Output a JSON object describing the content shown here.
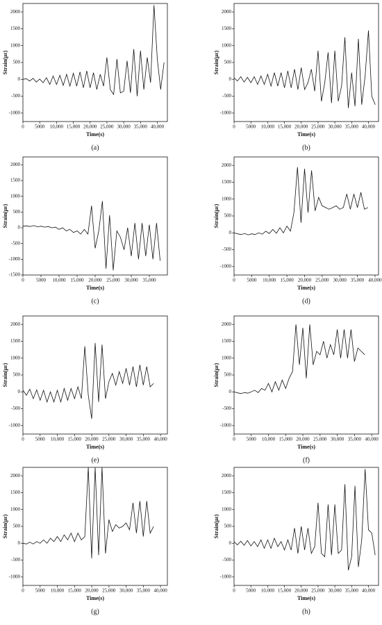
{
  "chart_data": [
    {
      "type": "line",
      "label": "(a)",
      "xlabel": "Time(s)",
      "ylabel": "Strain(με)",
      "color": "#111111",
      "x": [
        0,
        1000,
        2000,
        3000,
        4000,
        5000,
        6000,
        7000,
        8000,
        9000,
        10000,
        11000,
        12000,
        13000,
        14000,
        15000,
        16000,
        17000,
        18000,
        19000,
        20000,
        21000,
        22000,
        23000,
        24000,
        25000,
        26000,
        27000,
        28000,
        29000,
        30000,
        31000,
        32000,
        33000,
        34000,
        35000,
        36000,
        37000,
        38000,
        39000,
        40000,
        41000,
        42000
      ],
      "values": [
        0,
        20,
        -50,
        30,
        -80,
        10,
        -100,
        50,
        -150,
        100,
        -150,
        120,
        -180,
        150,
        -200,
        180,
        -200,
        220,
        -250,
        250,
        -250,
        200,
        -300,
        150,
        -200,
        650,
        -300,
        -450,
        600,
        -400,
        -350,
        550,
        -400,
        900,
        -500,
        850,
        -300,
        650,
        -100,
        2200,
        600,
        -300,
        500
      ],
      "xlim": [
        0,
        43000
      ],
      "ylim": [
        -1250,
        2250
      ],
      "xticks": [
        0,
        5000,
        {
          "value": 10000,
          "label": "10,000"
        },
        {
          "value": 15000,
          "label": "15,000"
        },
        {
          "value": 20000,
          "label": "20,000"
        },
        {
          "value": 25000,
          "label": "25,000"
        },
        {
          "value": 30000,
          "label": "30,000"
        },
        {
          "value": 35000,
          "label": "35,000"
        },
        {
          "value": 40000,
          "label": "40,000"
        }
      ],
      "yticks": [
        -1000,
        -500,
        0,
        500,
        1000,
        1500,
        2000
      ]
    },
    {
      "type": "line",
      "label": "(b)",
      "xlabel": "Time(s)",
      "ylabel": "Strain(με)",
      "color": "#111111",
      "x": [
        0,
        1000,
        2000,
        3000,
        4000,
        5000,
        6000,
        7000,
        8000,
        9000,
        10000,
        11000,
        12000,
        13000,
        14000,
        15000,
        16000,
        17000,
        18000,
        19000,
        20000,
        21000,
        22000,
        23000,
        24000,
        25000,
        26000,
        27000,
        28000,
        29000,
        30000,
        31000,
        32000,
        33000,
        34000,
        35000,
        36000,
        37000,
        38000,
        39000,
        40000,
        41000,
        42000
      ],
      "values": [
        50,
        -50,
        80,
        -80,
        60,
        -100,
        80,
        -150,
        100,
        -150,
        150,
        -200,
        200,
        -200,
        200,
        -250,
        250,
        -250,
        300,
        -300,
        350,
        -300,
        -100,
        300,
        -350,
        850,
        -650,
        -100,
        800,
        -700,
        850,
        -650,
        -200,
        1250,
        -850,
        200,
        -800,
        1200,
        -750,
        100,
        1450,
        -500,
        -750
      ],
      "xlim": [
        0,
        43000
      ],
      "ylim": [
        -1250,
        2250
      ],
      "xticks": [
        0,
        5000,
        {
          "value": 10000,
          "label": "10,000"
        },
        {
          "value": 15000,
          "label": "15,000"
        },
        {
          "value": 20000,
          "label": "20,000"
        },
        {
          "value": 25000,
          "label": "25,000"
        },
        {
          "value": 30000,
          "label": "30,000"
        },
        {
          "value": 35000,
          "label": "35,000"
        },
        {
          "value": 40000,
          "label": "40,000"
        }
      ],
      "yticks": [
        -1000,
        -500,
        0,
        500,
        1000,
        1500,
        2000
      ]
    },
    {
      "type": "line",
      "label": "(c)",
      "xlabel": "Time(s)",
      "ylabel": "Strain(με)",
      "color": "#111111",
      "x": [
        0,
        1000,
        2000,
        3000,
        4000,
        5000,
        6000,
        7000,
        8000,
        9000,
        10000,
        11000,
        12000,
        13000,
        14000,
        15000,
        16000,
        17000,
        18000,
        19000,
        20000,
        21000,
        22000,
        23000,
        24000,
        25000,
        26000,
        27000,
        28000,
        29000,
        30000,
        31000,
        32000,
        33000,
        34000,
        35000,
        36000,
        37000,
        38000
      ],
      "values": [
        50,
        60,
        40,
        70,
        30,
        50,
        20,
        40,
        0,
        20,
        -50,
        0,
        -100,
        -50,
        -150,
        -100,
        -200,
        -50,
        -200,
        700,
        -650,
        -100,
        850,
        -1300,
        400,
        -1350,
        -100,
        -300,
        -700,
        0,
        -900,
        150,
        -1000,
        150,
        -900,
        100,
        -1000,
        150,
        -1050
      ],
      "xlim": [
        0,
        40000
      ],
      "ylim": [
        -1500,
        2250
      ],
      "xticks": [
        0,
        5000,
        {
          "value": 10000,
          "label": "10,000"
        },
        {
          "value": 15000,
          "label": "15,000"
        },
        {
          "value": 20000,
          "label": "20,000"
        },
        {
          "value": 25000,
          "label": "25,000"
        },
        {
          "value": 30000,
          "label": "30,000"
        },
        {
          "value": 35000,
          "label": "35,000"
        }
      ],
      "yticks": [
        -1500,
        -1000,
        -500,
        0,
        500,
        1000,
        1500,
        2000
      ]
    },
    {
      "type": "line",
      "label": "(d)",
      "xlabel": "Time(s)",
      "ylabel": "Strain(με)",
      "color": "#111111",
      "x": [
        0,
        1000,
        2000,
        3000,
        4000,
        5000,
        6000,
        7000,
        8000,
        9000,
        10000,
        11000,
        12000,
        13000,
        14000,
        15000,
        16000,
        17000,
        18000,
        19000,
        20000,
        21000,
        22000,
        23000,
        24000,
        25000,
        26000,
        27000,
        28000,
        29000,
        30000,
        31000,
        32000,
        33000,
        34000,
        35000,
        36000,
        37000,
        38000
      ],
      "values": [
        0,
        -30,
        -50,
        -20,
        -60,
        -30,
        -50,
        0,
        -40,
        50,
        -20,
        100,
        -10,
        150,
        0,
        200,
        50,
        600,
        1950,
        300,
        1900,
        600,
        1850,
        650,
        1050,
        800,
        750,
        700,
        750,
        800,
        700,
        750,
        1150,
        700,
        1150,
        750,
        1200,
        700,
        750
      ],
      "xlim": [
        0,
        41000
      ],
      "ylim": [
        -1250,
        2250
      ],
      "xticks": [
        0,
        5000,
        {
          "value": 10000,
          "label": "10,000"
        },
        {
          "value": 15000,
          "label": "15,000"
        },
        {
          "value": 20000,
          "label": "20,000"
        },
        {
          "value": 25000,
          "label": "25,000"
        },
        {
          "value": 30000,
          "label": "30,000"
        },
        {
          "value": 35000,
          "label": "35,000"
        },
        {
          "value": 40000,
          "label": "40,000"
        }
      ],
      "yticks": [
        -1000,
        -500,
        0,
        500,
        1000,
        1500,
        2000
      ]
    },
    {
      "type": "line",
      "label": "(e)",
      "xlabel": "Time(s)",
      "ylabel": "Strain(με)",
      "color": "#111111",
      "x": [
        0,
        1000,
        2000,
        3000,
        4000,
        5000,
        6000,
        7000,
        8000,
        9000,
        10000,
        11000,
        12000,
        13000,
        14000,
        15000,
        16000,
        17000,
        18000,
        19000,
        20000,
        21000,
        22000,
        23000,
        24000,
        25000,
        26000,
        27000,
        28000,
        29000,
        30000,
        31000,
        32000,
        33000,
        34000,
        35000,
        36000,
        37000,
        38000
      ],
      "values": [
        50,
        -100,
        80,
        -200,
        60,
        -250,
        50,
        -300,
        0,
        -300,
        50,
        -300,
        100,
        -250,
        100,
        -200,
        150,
        -200,
        1350,
        -100,
        -800,
        1450,
        -300,
        1400,
        -200,
        300,
        550,
        200,
        600,
        250,
        700,
        200,
        750,
        150,
        800,
        200,
        750,
        150,
        250
      ],
      "xlim": [
        0,
        42000
      ],
      "ylim": [
        -1250,
        2250
      ],
      "xticks": [
        0,
        5000,
        {
          "value": 10000,
          "label": "10,000"
        },
        {
          "value": 15000,
          "label": "15,000"
        },
        {
          "value": 20000,
          "label": "20,000"
        },
        {
          "value": 25000,
          "label": "25,000"
        },
        {
          "value": 30000,
          "label": "30,000"
        },
        {
          "value": 35000,
          "label": "35,000"
        },
        {
          "value": 40000,
          "label": "40,000"
        }
      ],
      "yticks": [
        -1000,
        -500,
        0,
        500,
        1000,
        1500,
        2000
      ]
    },
    {
      "type": "line",
      "label": "(f)",
      "xlabel": "Time(s)",
      "ylabel": "Strain(με)",
      "color": "#111111",
      "x": [
        0,
        1000,
        2000,
        3000,
        4000,
        5000,
        6000,
        7000,
        8000,
        9000,
        10000,
        11000,
        12000,
        13000,
        14000,
        15000,
        16000,
        17000,
        18000,
        19000,
        20000,
        21000,
        22000,
        23000,
        24000,
        25000,
        26000,
        27000,
        28000,
        29000,
        30000,
        31000,
        32000,
        33000,
        34000,
        35000,
        36000,
        37000,
        38000
      ],
      "values": [
        0,
        -30,
        -50,
        -20,
        -40,
        0,
        50,
        -20,
        100,
        50,
        250,
        0,
        300,
        50,
        350,
        100,
        400,
        600,
        2000,
        800,
        1900,
        400,
        2000,
        800,
        1200,
        1100,
        1500,
        1000,
        1400,
        1100,
        1850,
        1000,
        1850,
        1000,
        1850,
        900,
        1300,
        1200,
        1100
      ],
      "xlim": [
        0,
        42000
      ],
      "ylim": [
        -1250,
        2250
      ],
      "xticks": [
        0,
        5000,
        {
          "value": 10000,
          "label": "10,000"
        },
        {
          "value": 15000,
          "label": "15,000"
        },
        {
          "value": 20000,
          "label": "20,000"
        },
        {
          "value": 25000,
          "label": "25,000"
        },
        {
          "value": 30000,
          "label": "30,000"
        },
        {
          "value": 35000,
          "label": "35,000"
        },
        {
          "value": 40000,
          "label": "40,000"
        }
      ],
      "yticks": [
        -1000,
        -500,
        0,
        500,
        1000,
        1500,
        2000
      ]
    },
    {
      "type": "line",
      "label": "(g)",
      "xlabel": "Time(s)",
      "ylabel": "Strain(με)",
      "color": "#111111",
      "x": [
        0,
        1000,
        2000,
        3000,
        4000,
        5000,
        6000,
        7000,
        8000,
        9000,
        10000,
        11000,
        12000,
        13000,
        14000,
        15000,
        16000,
        17000,
        18000,
        19000,
        20000,
        21000,
        22000,
        23000,
        24000,
        25000,
        26000,
        27000,
        28000,
        29000,
        30000,
        31000,
        32000,
        33000,
        34000,
        35000,
        36000,
        37000,
        38000
      ],
      "values": [
        0,
        -20,
        30,
        -20,
        50,
        0,
        100,
        0,
        150,
        50,
        200,
        50,
        250,
        100,
        300,
        50,
        300,
        100,
        200,
        2250,
        -450,
        2250,
        -350,
        2250,
        -300,
        700,
        350,
        550,
        450,
        500,
        600,
        400,
        1200,
        300,
        1250,
        200,
        1250,
        300,
        500
      ],
      "xlim": [
        0,
        42000
      ],
      "ylim": [
        -1250,
        2250
      ],
      "xticks": [
        0,
        5000,
        {
          "value": 10000,
          "label": "10,000"
        },
        {
          "value": 15000,
          "label": "15,000"
        },
        {
          "value": 20000,
          "label": "20,000"
        },
        {
          "value": 25000,
          "label": "25,000"
        },
        {
          "value": 30000,
          "label": "30,000"
        },
        {
          "value": 35000,
          "label": "35,000"
        },
        {
          "value": 40000,
          "label": "40,000"
        }
      ],
      "yticks": [
        -1000,
        -500,
        0,
        500,
        1000,
        1500,
        2000
      ]
    },
    {
      "type": "line",
      "label": "(h)",
      "xlabel": "Time(s)",
      "ylabel": "Strain(με)",
      "color": "#111111",
      "x": [
        0,
        1000,
        2000,
        3000,
        4000,
        5000,
        6000,
        7000,
        8000,
        9000,
        10000,
        11000,
        12000,
        13000,
        14000,
        15000,
        16000,
        17000,
        18000,
        19000,
        20000,
        21000,
        22000,
        23000,
        24000,
        25000,
        26000,
        27000,
        28000,
        29000,
        30000,
        31000,
        32000,
        33000,
        34000,
        35000,
        36000,
        37000,
        38000,
        39000,
        40000,
        41000,
        42000
      ],
      "values": [
        50,
        -50,
        60,
        -60,
        80,
        -80,
        50,
        -100,
        100,
        -150,
        100,
        -150,
        150,
        -100,
        50,
        -200,
        100,
        -200,
        450,
        -300,
        500,
        -200,
        450,
        -300,
        -100,
        1200,
        -300,
        -400,
        1150,
        -350,
        1150,
        -300,
        -200,
        1750,
        -800,
        -400,
        1700,
        -700,
        100,
        2200,
        400,
        300,
        -350
      ],
      "xlim": [
        0,
        43000
      ],
      "ylim": [
        -1250,
        2250
      ],
      "xticks": [
        0,
        5000,
        {
          "value": 10000,
          "label": "10,000"
        },
        {
          "value": 15000,
          "label": "15,000"
        },
        {
          "value": 20000,
          "label": "20,000"
        },
        {
          "value": 25000,
          "label": "25,000"
        },
        {
          "value": 30000,
          "label": "30,000"
        },
        {
          "value": 35000,
          "label": "35,000"
        },
        {
          "value": 40000,
          "label": "40,000"
        }
      ],
      "yticks": [
        -1000,
        -500,
        0,
        500,
        1000,
        1500,
        2000
      ]
    }
  ]
}
